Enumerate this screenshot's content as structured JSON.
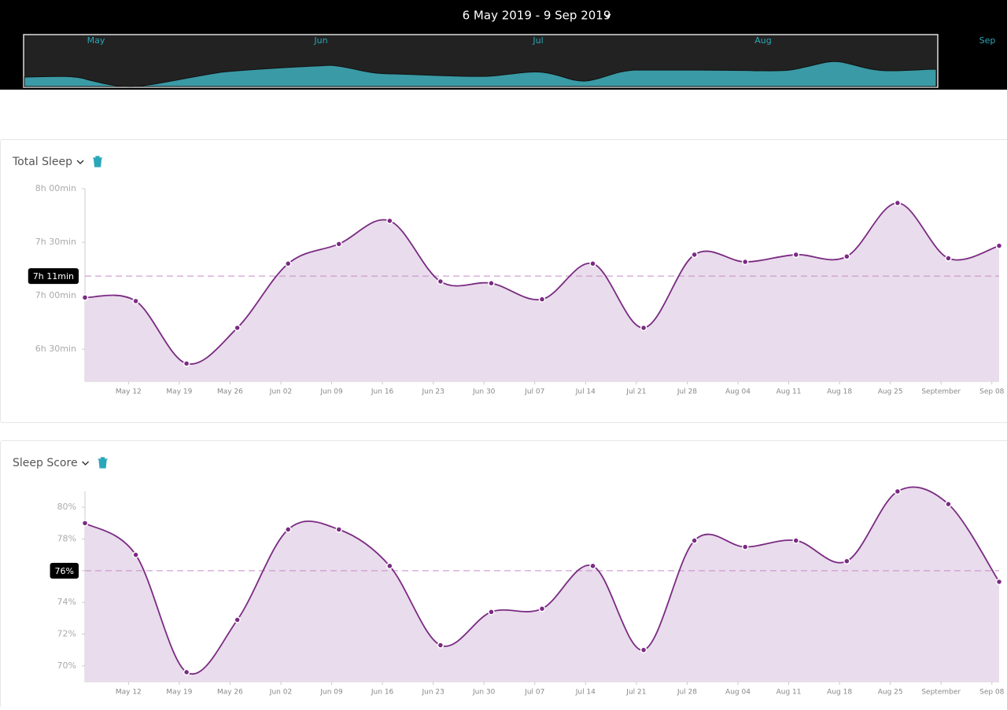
{
  "header": {
    "date_range": "6 May 2019 - 9 Sep 2019",
    "months": [
      "May",
      "Jun",
      "Jul",
      "Aug",
      "Sep"
    ]
  },
  "chart_data": [
    {
      "type": "area",
      "title": "Total Sleep",
      "color": "#7a2a82",
      "fill": "#e9dcec",
      "x": [
        0,
        7,
        14,
        21,
        28,
        35,
        42,
        49,
        56,
        63,
        70,
        77,
        84,
        91,
        98,
        105,
        112,
        119,
        126
      ],
      "values": [
        419,
        417,
        382,
        402,
        438,
        449,
        462,
        428,
        427,
        418,
        438,
        402,
        443,
        439,
        443,
        442,
        472,
        441,
        448
      ],
      "xlim": [
        0,
        126
      ],
      "xticks": [
        {
          "value": 6,
          "label": "May 12"
        },
        {
          "value": 13,
          "label": "May 19"
        },
        {
          "value": 20,
          "label": "May 26"
        },
        {
          "value": 27,
          "label": "Jun 02"
        },
        {
          "value": 34,
          "label": "Jun 09"
        },
        {
          "value": 41,
          "label": "Jun 16"
        },
        {
          "value": 48,
          "label": "Jun 23"
        },
        {
          "value": 55,
          "label": "Jun 30"
        },
        {
          "value": 62,
          "label": "Jul 07"
        },
        {
          "value": 69,
          "label": "Jul 14"
        },
        {
          "value": 76,
          "label": "Jul 21"
        },
        {
          "value": 83,
          "label": "Jul 28"
        },
        {
          "value": 90,
          "label": "Aug 04"
        },
        {
          "value": 97,
          "label": "Aug 11"
        },
        {
          "value": 104,
          "label": "Aug 18"
        },
        {
          "value": 111,
          "label": "Aug 25"
        },
        {
          "value": 118,
          "label": "September"
        },
        {
          "value": 125,
          "label": "Sep 08"
        }
      ],
      "ylim": [
        372,
        480
      ],
      "yticks": [
        {
          "value": 390,
          "label": "6h 30min"
        },
        {
          "value": 420,
          "label": "7h 00min"
        },
        {
          "value": 450,
          "label": "7h 30min"
        },
        {
          "value": 480,
          "label": "8h 00min"
        }
      ],
      "average": {
        "value": 431,
        "label": "7h 11min"
      }
    },
    {
      "type": "area",
      "title": "Sleep Score",
      "color": "#7a2a82",
      "fill": "#e9dcec",
      "x": [
        0,
        7,
        14,
        21,
        28,
        35,
        42,
        49,
        56,
        63,
        70,
        77,
        84,
        91,
        98,
        105,
        112,
        119,
        126
      ],
      "values": [
        79.0,
        77.0,
        69.6,
        72.9,
        78.6,
        78.6,
        76.3,
        71.3,
        73.4,
        73.6,
        76.3,
        71.0,
        77.9,
        77.5,
        77.9,
        76.6,
        81.0,
        80.2,
        75.3
      ],
      "xlim": [
        0,
        126
      ],
      "xticks": [
        {
          "value": 6,
          "label": "May 12"
        },
        {
          "value": 13,
          "label": "May 19"
        },
        {
          "value": 20,
          "label": "May 26"
        },
        {
          "value": 27,
          "label": "Jun 02"
        },
        {
          "value": 34,
          "label": "Jun 09"
        },
        {
          "value": 41,
          "label": "Jun 16"
        },
        {
          "value": 48,
          "label": "Jun 23"
        },
        {
          "value": 55,
          "label": "Jun 30"
        },
        {
          "value": 62,
          "label": "Jul 07"
        },
        {
          "value": 69,
          "label": "Jul 14"
        },
        {
          "value": 76,
          "label": "Jul 21"
        },
        {
          "value": 83,
          "label": "Jul 28"
        },
        {
          "value": 90,
          "label": "Aug 04"
        },
        {
          "value": 97,
          "label": "Aug 11"
        },
        {
          "value": 104,
          "label": "Aug 18"
        },
        {
          "value": 111,
          "label": "Aug 25"
        },
        {
          "value": 118,
          "label": "September"
        },
        {
          "value": 125,
          "label": "Sep 08"
        }
      ],
      "ylim": [
        69,
        81
      ],
      "yticks": [
        {
          "value": 70,
          "label": "70%"
        },
        {
          "value": 72,
          "label": "72%"
        },
        {
          "value": 74,
          "label": "74%"
        },
        {
          "value": 76,
          "label": "76%"
        },
        {
          "value": 78,
          "label": "78%"
        },
        {
          "value": 80,
          "label": "80%"
        }
      ],
      "average": {
        "value": 76,
        "label": "76%"
      }
    }
  ]
}
